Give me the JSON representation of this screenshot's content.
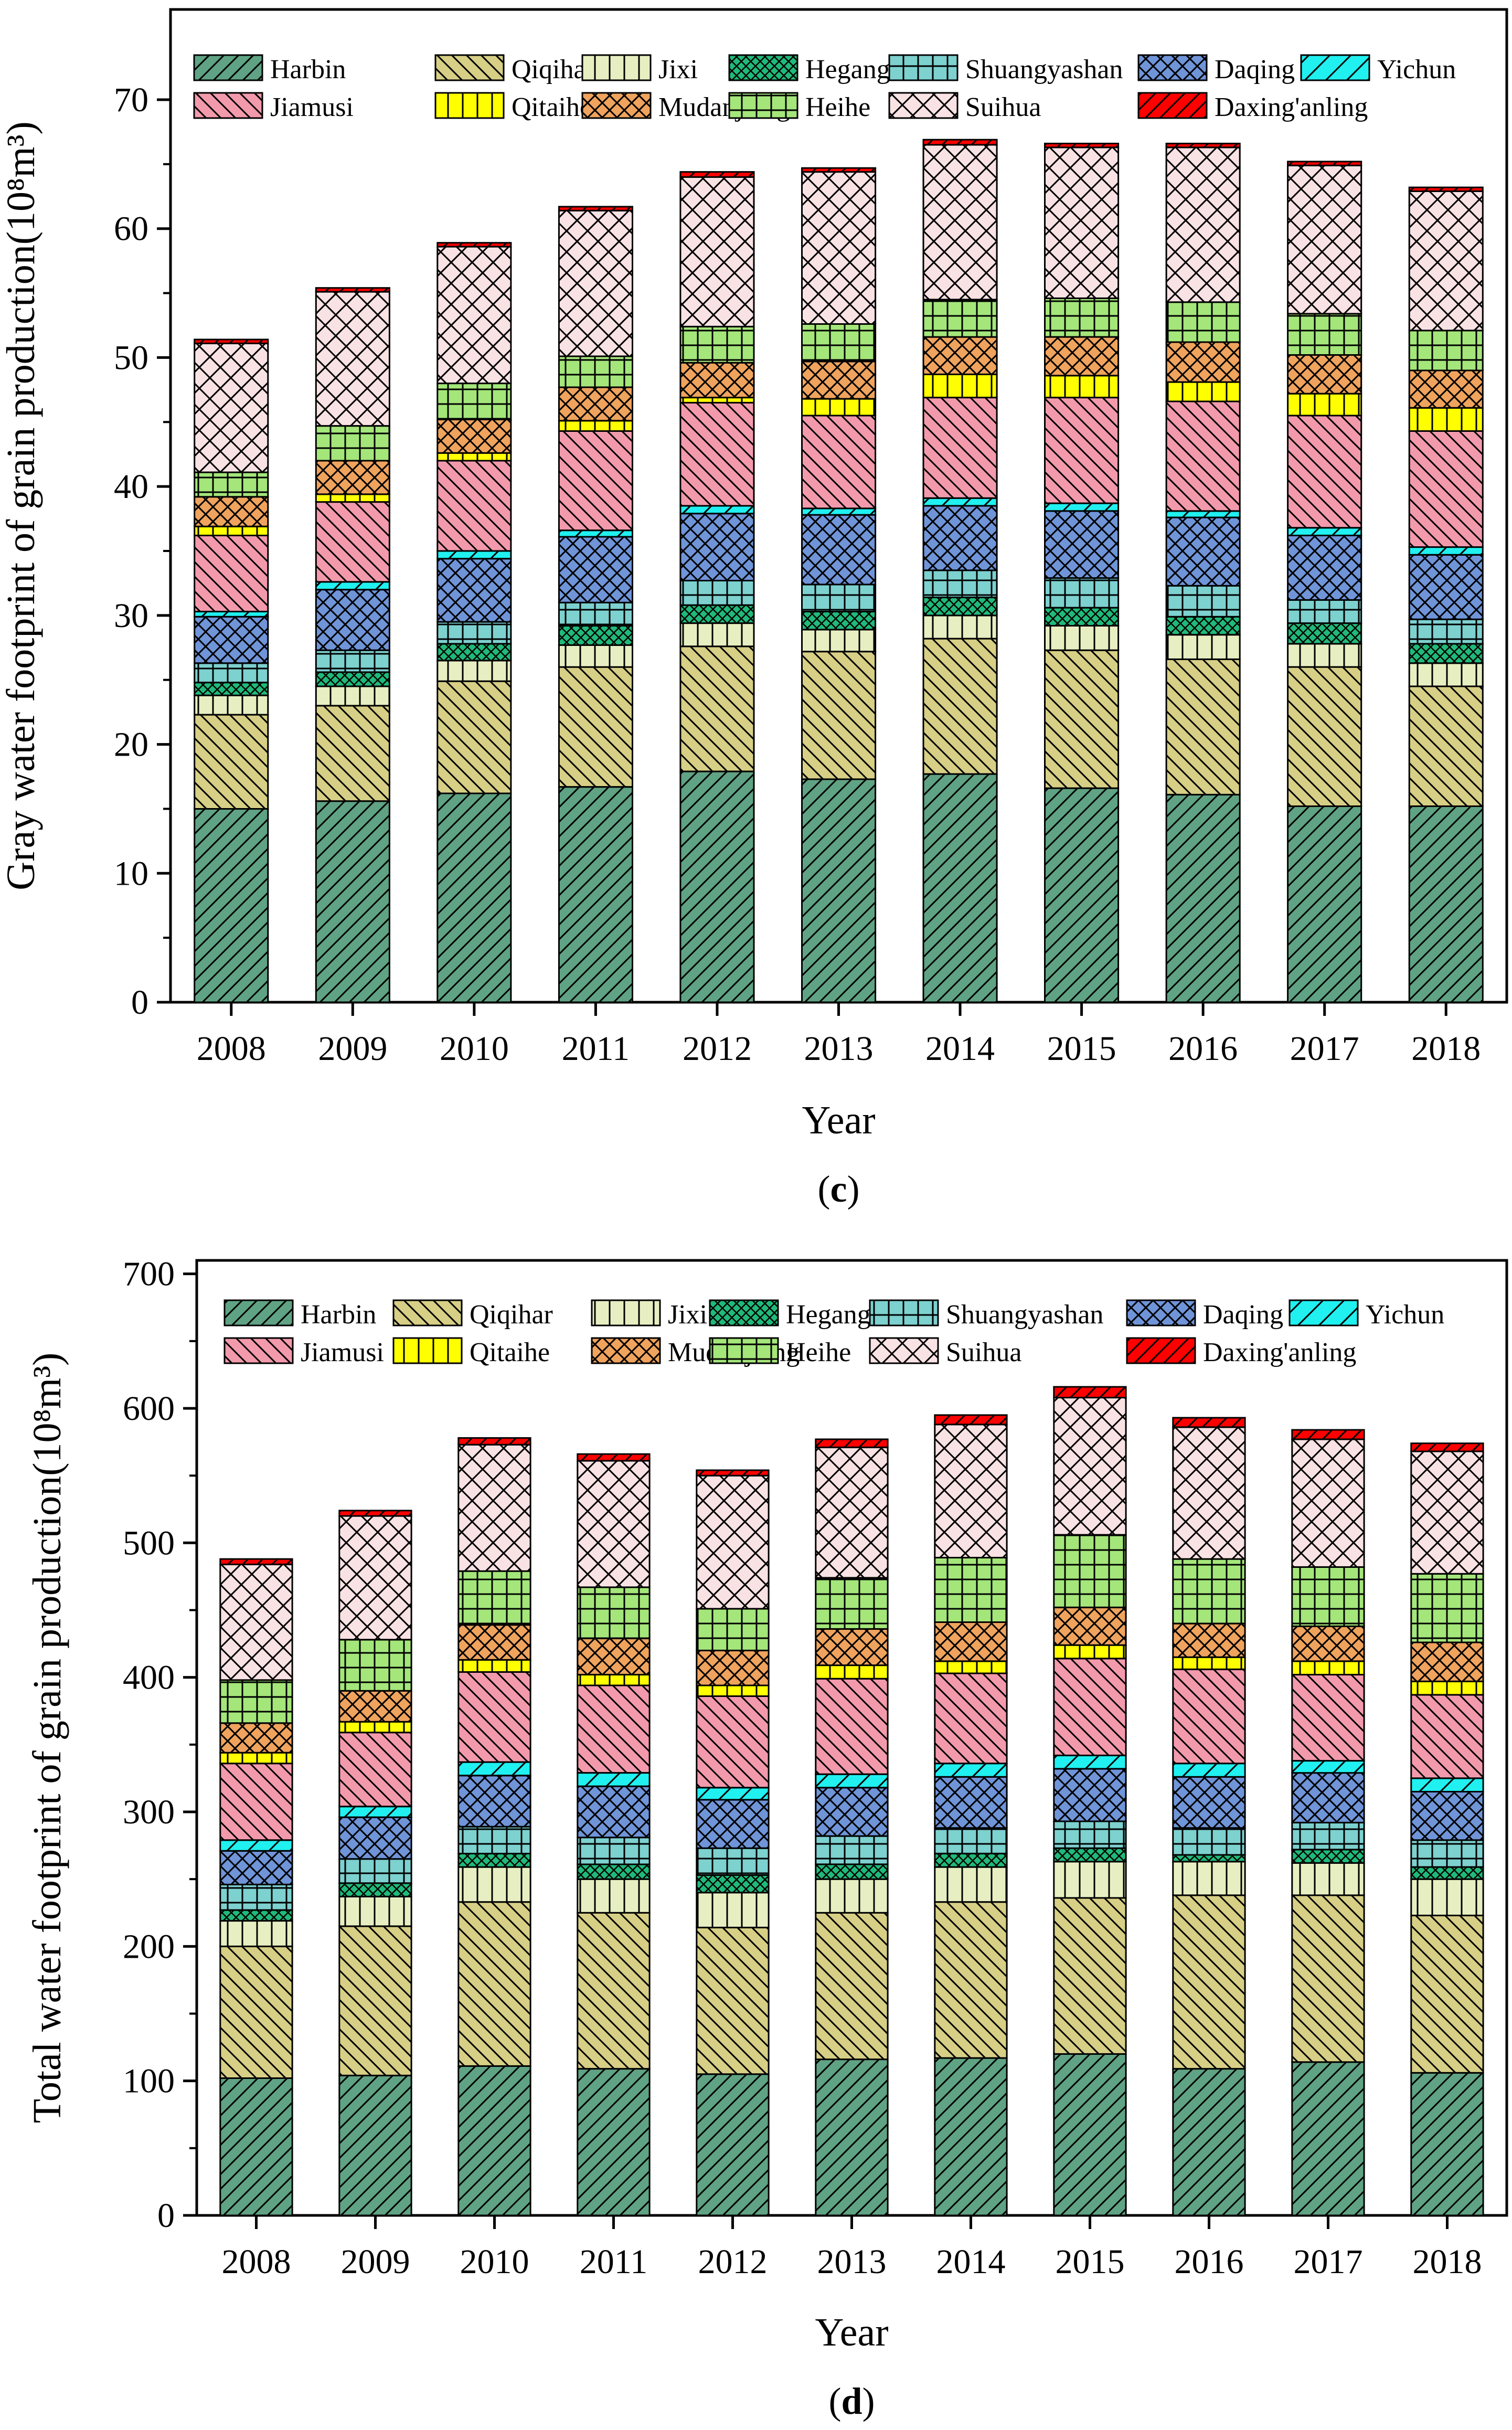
{
  "regions": [
    "Harbin",
    "Qiqihar",
    "Jixi",
    "Hegang",
    "Shuangyashan",
    "Daqing",
    "Yichun",
    "Jiamusi",
    "Qitaihe",
    "Mudanjiang",
    "Heihe",
    "Suihua",
    "Daxing'anling"
  ],
  "colors": [
    "#5fa384",
    "#d6cf85",
    "#e7efc2",
    "#1fba7a",
    "#7dd1cf",
    "#6f94d8",
    "#20f0f0",
    "#f29aac",
    "#ffff00",
    "#efa35d",
    "#a4e67a",
    "#f9e2e4",
    "#ff0000"
  ],
  "patterns": [
    "diag_fwd",
    "diag_back",
    "vert",
    "cross_dense",
    "grid",
    "xhatch",
    "diag_fwd_wide",
    "diag_back",
    "vert",
    "xhatch",
    "grid",
    "xhatch_wide",
    "diag_fwd"
  ],
  "chart_data": [
    {
      "type": "bar",
      "stacked": true,
      "panel_label": "c",
      "ylabel": "Gray water footprint of grain production(10⁸m³)",
      "xlabel": "Year",
      "ylim": [
        0,
        77
      ],
      "yticks": [
        "0",
        "10",
        "20",
        "30",
        "40",
        "50",
        "60",
        "70"
      ],
      "ytick_values": [
        0,
        10,
        20,
        30,
        40,
        50,
        60,
        70
      ],
      "categories": [
        "2008",
        "2009",
        "2010",
        "2011",
        "2012",
        "2013",
        "2014",
        "2015",
        "2016",
        "2017",
        "2018"
      ],
      "series": [
        {
          "name": "Harbin",
          "values": [
            15.0,
            15.6,
            16.2,
            16.7,
            17.9,
            17.3,
            17.7,
            16.6,
            16.1,
            15.2,
            15.2
          ]
        },
        {
          "name": "Qiqihar",
          "values": [
            7.3,
            7.4,
            8.7,
            9.3,
            9.7,
            9.9,
            10.5,
            10.7,
            10.5,
            10.8,
            9.3
          ]
        },
        {
          "name": "Jixi",
          "values": [
            1.5,
            1.5,
            1.6,
            1.7,
            1.8,
            1.7,
            1.8,
            1.9,
            1.9,
            1.8,
            1.8
          ]
        },
        {
          "name": "Hegang",
          "values": [
            1.0,
            1.1,
            1.3,
            1.5,
            1.4,
            1.4,
            1.4,
            1.4,
            1.4,
            1.6,
            1.5
          ]
        },
        {
          "name": "Shuangyashan",
          "values": [
            1.5,
            1.7,
            1.7,
            1.8,
            1.9,
            2.1,
            2.1,
            2.3,
            2.4,
            1.8,
            1.9
          ]
        },
        {
          "name": "Daqing",
          "values": [
            3.6,
            4.7,
            4.9,
            5.1,
            5.2,
            5.4,
            5.0,
            5.2,
            5.3,
            5.0,
            5.0
          ]
        },
        {
          "name": "Yichun",
          "values": [
            0.4,
            0.6,
            0.6,
            0.5,
            0.6,
            0.5,
            0.6,
            0.6,
            0.5,
            0.6,
            0.6
          ]
        },
        {
          "name": "Jiamusi",
          "values": [
            5.9,
            6.2,
            7.0,
            7.7,
            8.0,
            7.2,
            7.8,
            8.2,
            8.5,
            8.7,
            9.0
          ]
        },
        {
          "name": "Qitaihe",
          "values": [
            0.7,
            0.6,
            0.6,
            0.8,
            0.4,
            1.3,
            1.8,
            1.7,
            1.5,
            1.7,
            1.8
          ]
        },
        {
          "name": "Mudanjiang",
          "values": [
            2.3,
            2.6,
            2.6,
            2.6,
            2.7,
            2.9,
            2.9,
            3.0,
            3.1,
            3.0,
            2.9
          ]
        },
        {
          "name": "Heihe",
          "values": [
            1.9,
            2.7,
            2.8,
            2.4,
            2.8,
            2.9,
            2.9,
            3.0,
            3.1,
            3.2,
            3.1
          ]
        },
        {
          "name": "Suihua",
          "values": [
            10.0,
            10.4,
            10.6,
            11.3,
            11.6,
            11.8,
            12.0,
            11.7,
            12.0,
            11.5,
            10.8
          ]
        },
        {
          "name": "Daxing'anling",
          "values": [
            0.3,
            0.3,
            0.3,
            0.3,
            0.4,
            0.3,
            0.4,
            0.3,
            0.3,
            0.3,
            0.3
          ]
        }
      ]
    },
    {
      "type": "bar",
      "stacked": true,
      "panel_label": "d",
      "ylabel": "Total water footprint of grain production(10⁸m³)",
      "xlabel": "Year",
      "ylim": [
        0,
        710
      ],
      "yticks": [
        "0",
        "100",
        "200",
        "300",
        "400",
        "500",
        "600",
        "700"
      ],
      "ytick_values": [
        0,
        100,
        200,
        300,
        400,
        500,
        600,
        700
      ],
      "categories": [
        "2008",
        "2009",
        "2010",
        "2011",
        "2012",
        "2013",
        "2014",
        "2015",
        "2016",
        "2017",
        "2018"
      ],
      "series": [
        {
          "name": "Harbin",
          "values": [
            102,
            104,
            111,
            109,
            105,
            116,
            117,
            120,
            109,
            114,
            106
          ]
        },
        {
          "name": "Qiqihar",
          "values": [
            98,
            111,
            122,
            116,
            109,
            109,
            116,
            116,
            129,
            124,
            117
          ]
        },
        {
          "name": "Jixi",
          "values": [
            19,
            22,
            26,
            25,
            26,
            25,
            26,
            27,
            25,
            24,
            27
          ]
        },
        {
          "name": "Hegang",
          "values": [
            8,
            10,
            10,
            11,
            13,
            11,
            10,
            10,
            5,
            10,
            9
          ]
        },
        {
          "name": "Shuangyashan",
          "values": [
            19,
            18,
            20,
            20,
            20,
            21,
            19,
            20,
            20,
            20,
            20
          ]
        },
        {
          "name": "Daqing",
          "values": [
            25,
            31,
            38,
            38,
            36,
            36,
            38,
            39,
            38,
            37,
            36
          ]
        },
        {
          "name": "Yichun",
          "values": [
            8,
            8,
            10,
            10,
            9,
            10,
            10,
            10,
            10,
            9,
            10
          ]
        },
        {
          "name": "Jiamusi",
          "values": [
            57,
            55,
            67,
            65,
            68,
            71,
            67,
            72,
            70,
            64,
            62
          ]
        },
        {
          "name": "Qitaihe",
          "values": [
            8,
            8,
            9,
            8,
            8,
            10,
            9,
            10,
            9,
            10,
            10
          ]
        },
        {
          "name": "Mudanjiang",
          "values": [
            22,
            23,
            26,
            27,
            26,
            27,
            29,
            28,
            25,
            26,
            29
          ]
        },
        {
          "name": "Heihe",
          "values": [
            32,
            38,
            40,
            38,
            31,
            38,
            48,
            54,
            48,
            44,
            51
          ]
        },
        {
          "name": "Suihua",
          "values": [
            86,
            92,
            94,
            94,
            99,
            97,
            99,
            102,
            98,
            95,
            91
          ]
        },
        {
          "name": "Daxing'anling",
          "values": [
            4,
            4,
            5,
            5,
            4,
            6,
            7,
            8,
            7,
            7,
            6
          ]
        }
      ]
    }
  ]
}
